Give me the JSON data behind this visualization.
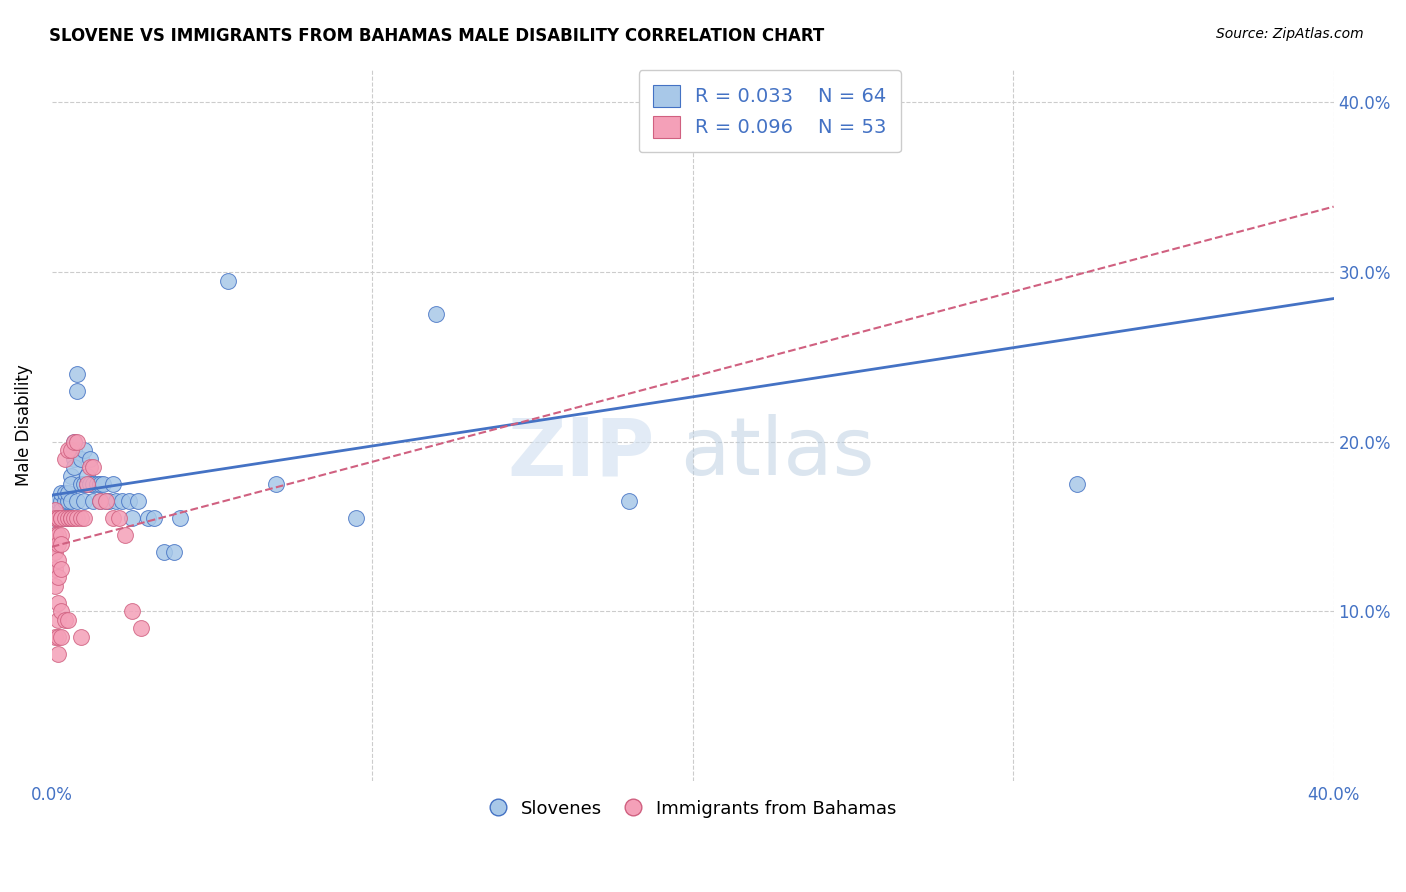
{
  "title": "SLOVENE VS IMMIGRANTS FROM BAHAMAS MALE DISABILITY CORRELATION CHART",
  "source": "Source: ZipAtlas.com",
  "ylabel": "Male Disability",
  "xlim": [
    0.0,
    0.4
  ],
  "ylim": [
    0.0,
    0.42
  ],
  "legend_slovene_label": "Slovenes",
  "legend_bahamas_label": "Immigrants from Bahamas",
  "slovene_color": "#a8c8e8",
  "bahamas_color": "#f4a0b8",
  "trendline_slovene_color": "#4472c4",
  "trendline_bahamas_color": "#d06080",
  "watermark_zip": "ZIP",
  "watermark_atlas": "atlas",
  "slovene_x": [
    0.001,
    0.001,
    0.001,
    0.002,
    0.002,
    0.002,
    0.002,
    0.003,
    0.003,
    0.003,
    0.003,
    0.003,
    0.004,
    0.004,
    0.004,
    0.005,
    0.005,
    0.005,
    0.005,
    0.006,
    0.006,
    0.006,
    0.007,
    0.007,
    0.007,
    0.007,
    0.008,
    0.008,
    0.008,
    0.009,
    0.009,
    0.01,
    0.01,
    0.01,
    0.011,
    0.011,
    0.012,
    0.012,
    0.013,
    0.013,
    0.014,
    0.015,
    0.015,
    0.016,
    0.017,
    0.018,
    0.019,
    0.02,
    0.022,
    0.024,
    0.025,
    0.027,
    0.03,
    0.032,
    0.035,
    0.038,
    0.04,
    0.055,
    0.07,
    0.095,
    0.12,
    0.18,
    0.23,
    0.32
  ],
  "slovene_y": [
    0.155,
    0.16,
    0.145,
    0.155,
    0.16,
    0.165,
    0.155,
    0.165,
    0.17,
    0.155,
    0.16,
    0.155,
    0.165,
    0.17,
    0.155,
    0.155,
    0.165,
    0.17,
    0.155,
    0.18,
    0.175,
    0.165,
    0.195,
    0.2,
    0.19,
    0.185,
    0.23,
    0.24,
    0.165,
    0.19,
    0.175,
    0.195,
    0.175,
    0.165,
    0.175,
    0.18,
    0.19,
    0.175,
    0.175,
    0.165,
    0.175,
    0.165,
    0.175,
    0.175,
    0.165,
    0.165,
    0.175,
    0.165,
    0.165,
    0.165,
    0.155,
    0.165,
    0.155,
    0.155,
    0.135,
    0.135,
    0.155,
    0.295,
    0.175,
    0.155,
    0.275,
    0.165,
    0.38,
    0.175
  ],
  "bahamas_x": [
    0.001,
    0.001,
    0.001,
    0.001,
    0.001,
    0.001,
    0.001,
    0.001,
    0.001,
    0.001,
    0.002,
    0.002,
    0.002,
    0.002,
    0.002,
    0.002,
    0.002,
    0.002,
    0.002,
    0.002,
    0.003,
    0.003,
    0.003,
    0.003,
    0.003,
    0.003,
    0.003,
    0.004,
    0.004,
    0.004,
    0.005,
    0.005,
    0.005,
    0.006,
    0.006,
    0.006,
    0.007,
    0.007,
    0.008,
    0.008,
    0.009,
    0.009,
    0.01,
    0.011,
    0.012,
    0.013,
    0.015,
    0.017,
    0.019,
    0.021,
    0.023,
    0.025,
    0.028
  ],
  "bahamas_y": [
    0.155,
    0.145,
    0.14,
    0.16,
    0.155,
    0.145,
    0.135,
    0.125,
    0.115,
    0.085,
    0.155,
    0.155,
    0.145,
    0.14,
    0.13,
    0.12,
    0.105,
    0.095,
    0.085,
    0.075,
    0.155,
    0.155,
    0.145,
    0.14,
    0.125,
    0.1,
    0.085,
    0.19,
    0.155,
    0.095,
    0.195,
    0.155,
    0.095,
    0.195,
    0.155,
    0.155,
    0.2,
    0.155,
    0.2,
    0.155,
    0.155,
    0.085,
    0.155,
    0.175,
    0.185,
    0.185,
    0.165,
    0.165,
    0.155,
    0.155,
    0.145,
    0.1,
    0.09
  ]
}
